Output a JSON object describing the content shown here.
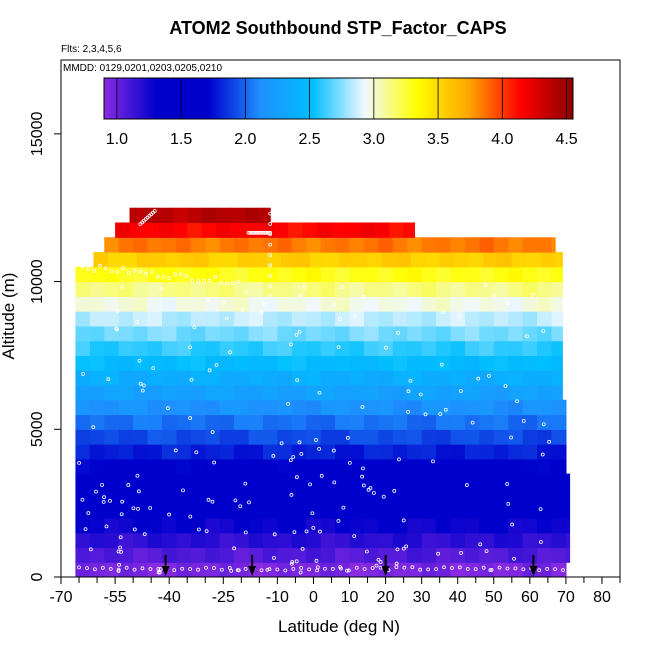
{
  "chart_data": {
    "type": "heatmap",
    "title": "ATOM2 Southbound STP_Factor_CAPS",
    "subtitle_flights": "Flts: 2,3,4,5,6",
    "subtitle_dates": "MMDD: 0129,0201,0203,0205,0210",
    "xlabel": "Latitude (deg N)",
    "ylabel": "Altitude (m)",
    "xlim": [
      -70,
      85
    ],
    "ylim": [
      0,
      17500
    ],
    "x_ticks": [
      -70,
      -55,
      -40,
      -25,
      -10,
      0,
      10,
      20,
      30,
      40,
      50,
      60,
      70,
      80
    ],
    "x_minor_ticks": [
      -65,
      -60,
      -50,
      -45,
      -35,
      -30,
      -20,
      -15,
      -5,
      5,
      15,
      25,
      35,
      45,
      55,
      65,
      75,
      85
    ],
    "y_ticks": [
      0,
      5000,
      10000,
      15000
    ],
    "colorbar": {
      "range": [
        0.9,
        4.55
      ],
      "ticks": [
        1.0,
        1.5,
        2.0,
        2.5,
        3.0,
        3.5,
        4.0,
        4.5
      ],
      "tick_labels": [
        "1.0",
        "1.5",
        "2.0",
        "2.5",
        "3.0",
        "3.5",
        "4.0",
        "4.5"
      ]
    },
    "color_stops": [
      "#8a2be2",
      "#0000cd",
      "#0000cd",
      "#1e90ff",
      "#00bfff",
      "#f0f8ff",
      "#ffff00",
      "#ffa500",
      "#ff0000",
      "#8b0000"
    ],
    "bands": [
      {
        "alt0": 0,
        "alt1": 500,
        "lat0": -66,
        "lat1": 70,
        "value": 0.95
      },
      {
        "alt0": 500,
        "alt1": 1000,
        "lat0": -66,
        "lat1": 71,
        "value": 1.07
      },
      {
        "alt0": 1000,
        "alt1": 1500,
        "lat0": -66,
        "lat1": 71,
        "value": 1.18
      },
      {
        "alt0": 1500,
        "alt1": 2000,
        "lat0": -66,
        "lat1": 71,
        "value": 1.28
      },
      {
        "alt0": 2000,
        "alt1": 2500,
        "lat0": -66,
        "lat1": 71,
        "value": 1.39
      },
      {
        "alt0": 2500,
        "alt1": 3000,
        "lat0": -66,
        "lat1": 71,
        "value": 1.48
      },
      {
        "alt0": 3000,
        "alt1": 3500,
        "lat0": -66,
        "lat1": 71,
        "value": 1.58
      },
      {
        "alt0": 3500,
        "alt1": 4000,
        "lat0": -66,
        "lat1": 70,
        "value": 1.68
      },
      {
        "alt0": 4000,
        "alt1": 4500,
        "lat0": -66,
        "lat1": 70,
        "value": 1.8
      },
      {
        "alt0": 4500,
        "alt1": 5000,
        "lat0": -66,
        "lat1": 70,
        "value": 1.92
      },
      {
        "alt0": 5000,
        "alt1": 5500,
        "lat0": -66,
        "lat1": 70,
        "value": 2.03
      },
      {
        "alt0": 5500,
        "alt1": 6000,
        "lat0": -66,
        "lat1": 70,
        "value": 2.14
      },
      {
        "alt0": 6000,
        "alt1": 6500,
        "lat0": -66,
        "lat1": 69,
        "value": 2.26
      },
      {
        "alt0": 6500,
        "alt1": 7000,
        "lat0": -66,
        "lat1": 69,
        "value": 2.37
      },
      {
        "alt0": 7000,
        "alt1": 7500,
        "lat0": -66,
        "lat1": 69,
        "value": 2.49
      },
      {
        "alt0": 7500,
        "alt1": 8000,
        "lat0": -66,
        "lat1": 69,
        "value": 2.6
      },
      {
        "alt0": 8000,
        "alt1": 8500,
        "lat0": -66,
        "lat1": 69,
        "value": 2.72
      },
      {
        "alt0": 8500,
        "alt1": 9000,
        "lat0": -66,
        "lat1": 69,
        "value": 2.84
      },
      {
        "alt0": 9000,
        "alt1": 9500,
        "lat0": -66,
        "lat1": 69,
        "value": 2.97
      },
      {
        "alt0": 9500,
        "alt1": 10000,
        "lat0": -66,
        "lat1": 69,
        "value": 3.12
      },
      {
        "alt0": 10000,
        "alt1": 10500,
        "lat0": -66,
        "lat1": 69,
        "value": 3.3
      },
      {
        "alt0": 10500,
        "alt1": 11000,
        "lat0": -61,
        "lat1": 69,
        "value": 3.55
      },
      {
        "alt0": 11000,
        "alt1": 11500,
        "lat0": -58,
        "lat1": 67,
        "value": 3.85
      },
      {
        "alt0": 11500,
        "alt1": 12000,
        "lat0": -55,
        "lat1": 28,
        "value": 4.15
      },
      {
        "alt0": 12000,
        "alt1": 12500,
        "lat0": -51,
        "lat1": -12,
        "value": 4.4
      }
    ],
    "sounding_markers_lat": [
      -41,
      -17,
      20,
      61
    ]
  }
}
